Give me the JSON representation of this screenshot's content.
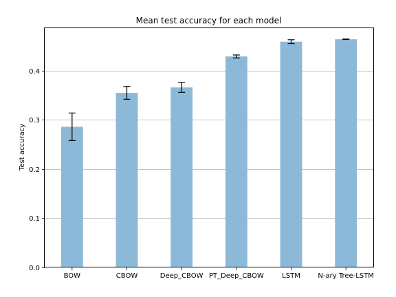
{
  "chart_data": {
    "type": "bar",
    "title": "Mean test accuracy for each model",
    "xlabel": "",
    "ylabel": "Test accuracy",
    "categories": [
      "BOW",
      "CBOW",
      "Deep_CBOW",
      "PT_Deep_CBOW",
      "LSTM",
      "N-ary Tree-LSTM"
    ],
    "values": [
      0.286,
      0.355,
      0.366,
      0.429,
      0.459,
      0.464
    ],
    "errors": [
      0.028,
      0.013,
      0.01,
      0.003,
      0.004,
      0.0005
    ],
    "ylim": [
      0,
      0.4865
    ],
    "yticks": [
      0.0,
      0.1,
      0.2,
      0.3,
      0.4
    ],
    "ytick_labels": [
      "0.0",
      "0.1",
      "0.2",
      "0.3",
      "0.4"
    ],
    "grid": "y",
    "bar_color": "#8db9d9",
    "error_color": "#000000"
  }
}
